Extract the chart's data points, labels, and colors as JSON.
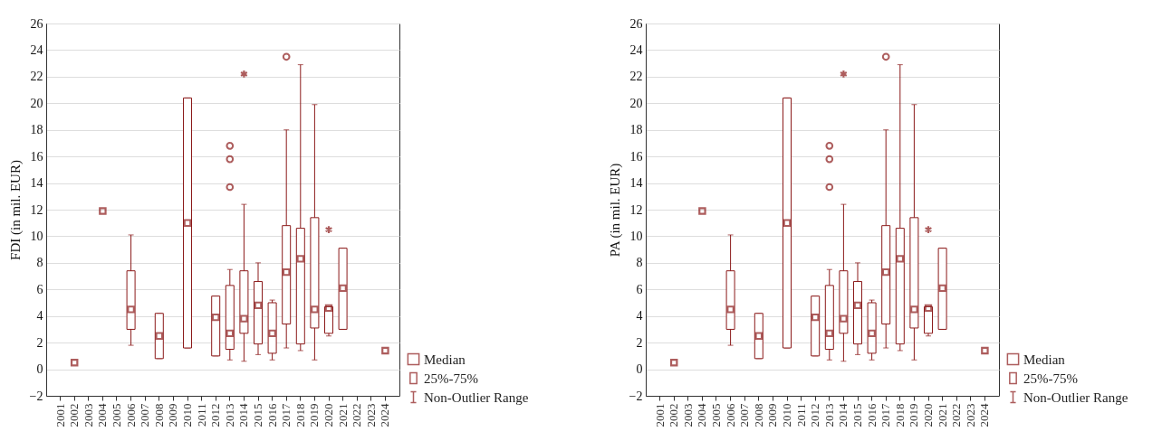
{
  "chart_data": [
    {
      "type": "box",
      "ylabel": "FDI (in mil. EUR)",
      "color": "#8b1a1a",
      "marker": "square",
      "grid": "y",
      "categories": [
        "2001",
        "2002",
        "2003",
        "2004",
        "2005",
        "2006",
        "2007",
        "2008",
        "2009",
        "2010",
        "2011",
        "2012",
        "2013",
        "2014",
        "2015",
        "2016",
        "2017",
        "2018",
        "2019",
        "2020",
        "2021",
        "2022",
        "2023",
        "2024"
      ],
      "ylim": [
        -2,
        26
      ],
      "yticks": [
        -2,
        0,
        2,
        4,
        6,
        8,
        10,
        12,
        14,
        16,
        18,
        20,
        22,
        24,
        26
      ],
      "annotations": [
        "Median",
        "25%-75%",
        "Non-Outlier Range"
      ],
      "boxes": [
        null,
        null,
        null,
        null,
        null,
        {
          "low": 1.8,
          "q1": 3.0,
          "median": 4.5,
          "q3": 7.4,
          "high": 10.1
        },
        null,
        {
          "low": 0.8,
          "q1": 0.8,
          "median": 2.5,
          "q3": 4.2,
          "high": 4.2
        },
        null,
        {
          "low": 1.6,
          "q1": 1.6,
          "median": 11.0,
          "q3": 20.4,
          "high": 20.4
        },
        null,
        {
          "low": 1.0,
          "q1": 1.0,
          "median": 3.9,
          "q3": 5.5,
          "high": 5.5
        },
        {
          "low": 0.7,
          "q1": 1.5,
          "median": 2.7,
          "q3": 6.3,
          "high": 7.5,
          "outliers": [
            13.7,
            15.8,
            16.8
          ]
        },
        {
          "low": 0.6,
          "q1": 2.7,
          "median": 3.8,
          "q3": 7.4,
          "high": 12.4
        },
        {
          "low": 1.1,
          "q1": 1.9,
          "median": 4.8,
          "q3": 6.6,
          "high": 8.0
        },
        {
          "low": 0.7,
          "q1": 1.2,
          "median": 2.7,
          "q3": 5.0,
          "high": 5.2
        },
        {
          "low": 1.6,
          "q1": 3.4,
          "median": 7.3,
          "q3": 10.8,
          "high": 18.0,
          "outliers": [
            23.5
          ]
        },
        {
          "low": 1.4,
          "q1": 1.9,
          "median": 8.3,
          "q3": 10.6,
          "high": 22.9
        },
        {
          "low": 0.7,
          "q1": 3.1,
          "median": 4.5,
          "q3": 11.4,
          "high": 19.9
        },
        {
          "low": 2.5,
          "q1": 2.7,
          "median": 4.6,
          "q3": 4.7,
          "high": 4.7
        },
        {
          "low": 3.0,
          "q1": 3.0,
          "median": 6.1,
          "q3": 9.1,
          "high": 9.1
        },
        null,
        null,
        null
      ],
      "series": [
        {
          "type": "scatter",
          "marker": "cross",
          "color": "#8b1a1a",
          "values": [
            null,
            null,
            null,
            null,
            null,
            null,
            null,
            null,
            null,
            null,
            null,
            null,
            null,
            22.2,
            null,
            null,
            null,
            null,
            null,
            10.5,
            null,
            null,
            null,
            null
          ]
        },
        {
          "type": "scatter",
          "marker": "square",
          "color": "#8b1a1a",
          "values": [
            null,
            0.5,
            null,
            11.9,
            null,
            null,
            null,
            null,
            null,
            null,
            null,
            null,
            null,
            null,
            null,
            null,
            null,
            null,
            null,
            null,
            null,
            null,
            null,
            1.4
          ]
        }
      ]
    },
    {
      "type": "box",
      "ylabel": "PA (in mil. EUR)",
      "color": "#8b1a1a",
      "marker": "square",
      "grid": "y",
      "categories": [
        "2001",
        "2002",
        "2003",
        "2004",
        "2005",
        "2006",
        "2007",
        "2008",
        "2009",
        "2010",
        "2011",
        "2012",
        "2013",
        "2014",
        "2015",
        "2016",
        "2017",
        "2018",
        "2019",
        "2020",
        "2021",
        "2022",
        "2023",
        "2024"
      ],
      "ylim": [
        -2,
        26
      ],
      "yticks": [
        -2,
        0,
        2,
        4,
        6,
        8,
        10,
        12,
        14,
        16,
        18,
        20,
        22,
        24,
        26
      ],
      "annotations": [
        "Median",
        "25%-75%",
        "Non-Outlier Range"
      ],
      "boxes": [
        null,
        null,
        null,
        null,
        null,
        {
          "low": 1.8,
          "q1": 3.0,
          "median": 4.5,
          "q3": 7.4,
          "high": 10.1
        },
        null,
        {
          "low": 0.8,
          "q1": 0.8,
          "median": 2.5,
          "q3": 4.2,
          "high": 4.2
        },
        null,
        {
          "low": 1.6,
          "q1": 1.6,
          "median": 11.0,
          "q3": 20.4,
          "high": 20.4
        },
        null,
        {
          "low": 1.0,
          "q1": 1.0,
          "median": 3.9,
          "q3": 5.5,
          "high": 5.5
        },
        {
          "low": 0.7,
          "q1": 1.5,
          "median": 2.7,
          "q3": 6.3,
          "high": 7.5,
          "outliers": [
            13.7,
            15.8,
            16.8
          ]
        },
        {
          "low": 0.6,
          "q1": 2.7,
          "median": 3.8,
          "q3": 7.4,
          "high": 12.4
        },
        {
          "low": 1.1,
          "q1": 1.9,
          "median": 4.8,
          "q3": 6.6,
          "high": 8.0
        },
        {
          "low": 0.7,
          "q1": 1.2,
          "median": 2.7,
          "q3": 5.0,
          "high": 5.2
        },
        {
          "low": 1.6,
          "q1": 3.4,
          "median": 7.3,
          "q3": 10.8,
          "high": 18.0,
          "outliers": [
            23.5
          ]
        },
        {
          "low": 1.4,
          "q1": 1.9,
          "median": 8.3,
          "q3": 10.6,
          "high": 22.9
        },
        {
          "low": 0.7,
          "q1": 3.1,
          "median": 4.5,
          "q3": 11.4,
          "high": 19.9
        },
        {
          "low": 2.5,
          "q1": 2.7,
          "median": 4.6,
          "q3": 4.7,
          "high": 4.7
        },
        {
          "low": 3.0,
          "q1": 3.0,
          "median": 6.1,
          "q3": 9.1,
          "high": 9.1
        },
        null,
        null,
        null
      ],
      "series": [
        {
          "type": "scatter",
          "marker": "cross",
          "color": "#8b1a1a",
          "values": [
            null,
            null,
            null,
            null,
            null,
            null,
            null,
            null,
            null,
            null,
            null,
            null,
            null,
            22.2,
            null,
            null,
            null,
            null,
            null,
            10.5,
            null,
            null,
            null,
            null
          ]
        },
        {
          "type": "scatter",
          "marker": "square",
          "color": "#8b1a1a",
          "values": [
            null,
            0.5,
            null,
            11.9,
            null,
            null,
            null,
            null,
            null,
            null,
            null,
            null,
            null,
            null,
            null,
            null,
            null,
            null,
            null,
            null,
            null,
            null,
            null,
            1.4
          ]
        }
      ]
    }
  ]
}
